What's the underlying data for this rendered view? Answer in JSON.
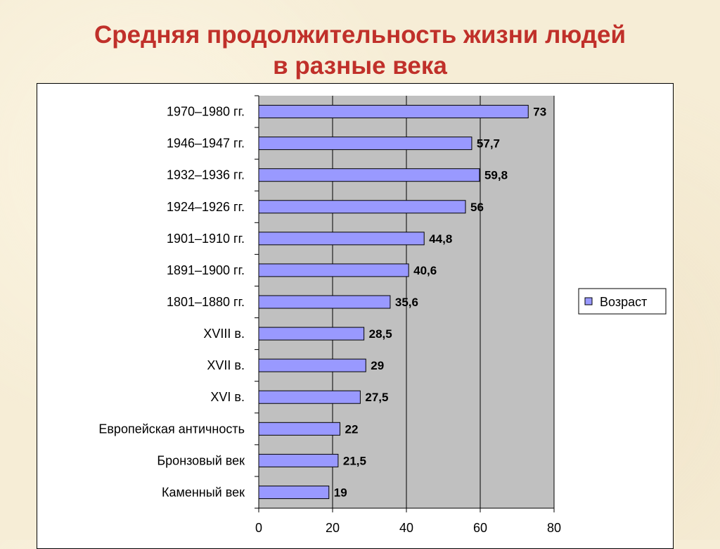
{
  "chart_data": {
    "type": "bar",
    "orientation": "horizontal",
    "title": "Средняя продолжительность жизни людей",
    "subtitle": "в разные века",
    "categories": [
      "1970–1980 гг.",
      "1946–1947 гг.",
      "1932–1936 гг.",
      "1924–1926 гг.",
      "1901–1910 гг.",
      "1891–1900 гг.",
      "1801–1880 гг.",
      "XVIII в.",
      "XVII в.",
      "XVI в.",
      "Европейская античность",
      "Бронзовый век",
      "Каменный век"
    ],
    "series": [
      {
        "name": "Возраст",
        "values": [
          73,
          57.7,
          59.8,
          56,
          44.8,
          40.6,
          35.6,
          28.5,
          29,
          27.5,
          22,
          21.5,
          19
        ],
        "labels": [
          "73",
          "57,7",
          "59,8",
          "56",
          "44,8",
          "40,6",
          "35,6",
          "28,5",
          "29",
          "27,5",
          "22",
          "21,5",
          "19"
        ]
      }
    ],
    "xlim": [
      0,
      80
    ],
    "xticks": [
      "0",
      "20",
      "40",
      "60",
      "80"
    ],
    "grid": "vertical",
    "legend": "right",
    "colors": {
      "bar": "#9999ff",
      "bar_border": "#000000",
      "plot_bg": "#c0c0c0",
      "title": "#c0302a"
    }
  }
}
